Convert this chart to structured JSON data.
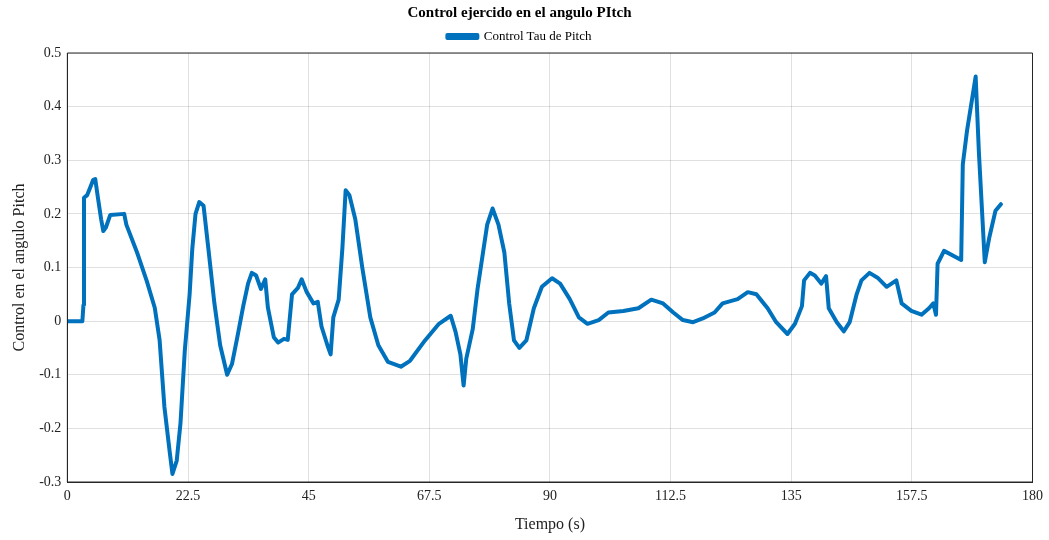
{
  "chart_data": {
    "type": "line",
    "title": "Control ejercido en el angulo PItch",
    "xlabel": "Tiempo (s)",
    "ylabel": "Control en el angulo Pitch",
    "xlim": [
      0,
      180
    ],
    "xticks": [
      0,
      22.5,
      45,
      67.5,
      90,
      112.5,
      135,
      157.5,
      180
    ],
    "ylim": [
      -0.3,
      0.5
    ],
    "yticks": [
      -0.3,
      -0.2,
      -0.1,
      0,
      0.1,
      0.2,
      0.3,
      0.4,
      0.5
    ],
    "grid": true,
    "legend": "top",
    "marker": "none",
    "line_style": "solid",
    "series": [
      {
        "name": "Control Tau de Pitch",
        "color": "#0072bd",
        "x": [
          0,
          2.8,
          3.0,
          3.1,
          3.7,
          4.3,
          4.8,
          5.2,
          5.7,
          6.3,
          6.7,
          7.2,
          8.0,
          10.6,
          11.0,
          13.0,
          14.8,
          16.3,
          17.2,
          18.1,
          19.1,
          19.6,
          20.4,
          21.1,
          21.9,
          22.8,
          23.3,
          23.9,
          24.6,
          25.4,
          26.3,
          27.4,
          28.5,
          29.8,
          30.7,
          31.7,
          32.8,
          33.7,
          34.4,
          35.2,
          36.1,
          36.9,
          37.4,
          38.5,
          39.3,
          40.4,
          41.1,
          41.9,
          43.0,
          43.7,
          44.6,
          45.9,
          46.7,
          47.4,
          48.5,
          49.1,
          49.6,
          50.6,
          51.3,
          51.9,
          52.6,
          53.7,
          55.0,
          56.5,
          58.0,
          59.8,
          62.2,
          63.9,
          66.7,
          69.3,
          71.5,
          72.4,
          73.3,
          73.9,
          74.4,
          75.6,
          76.5,
          77.4,
          78.3,
          79.3,
          80.4,
          81.5,
          82.4,
          83.3,
          84.3,
          85.6,
          87.0,
          88.5,
          90.4,
          91.9,
          93.7,
          95.4,
          97.0,
          99.1,
          100.9,
          103.7,
          106.5,
          108.9,
          111.1,
          113.0,
          114.8,
          116.7,
          118.5,
          120.7,
          122.2,
          125.0,
          126.9,
          128.5,
          130.6,
          132.2,
          134.3,
          135.7,
          137.0,
          137.4,
          138.5,
          139.4,
          140.6,
          141.5,
          142.0,
          143.5,
          144.8,
          145.9,
          147.2,
          148.1,
          149.6,
          151.1,
          152.8,
          154.6,
          155.6,
          157.4,
          159.3,
          160.7,
          161.5,
          162.0,
          162.3,
          163.5,
          166.7,
          167.0,
          167.8,
          169.4,
          170.0,
          171.1,
          171.9,
          173.1,
          174.1
        ],
        "values": [
          0,
          0,
          0.03,
          0.23,
          0.235,
          0.25,
          0.263,
          0.265,
          0.23,
          0.19,
          0.168,
          0.175,
          0.198,
          0.2,
          0.18,
          0.128,
          0.075,
          0.025,
          -0.035,
          -0.16,
          -0.245,
          -0.285,
          -0.26,
          -0.19,
          -0.055,
          0.05,
          0.135,
          0.2,
          0.222,
          0.215,
          0.135,
          0.035,
          -0.045,
          -0.1,
          -0.08,
          -0.03,
          0.028,
          0.07,
          0.09,
          0.085,
          0.06,
          0.078,
          0.025,
          -0.03,
          -0.04,
          -0.033,
          -0.035,
          0.05,
          0.062,
          0.078,
          0.055,
          0.033,
          0.036,
          -0.01,
          -0.045,
          -0.062,
          0.007,
          0.04,
          0.137,
          0.244,
          0.235,
          0.19,
          0.1,
          0.007,
          -0.045,
          -0.076,
          -0.085,
          -0.074,
          -0.036,
          -0.005,
          0.01,
          -0.02,
          -0.062,
          -0.12,
          -0.07,
          -0.015,
          0.06,
          0.12,
          0.18,
          0.21,
          0.18,
          0.128,
          0.033,
          -0.036,
          -0.05,
          -0.036,
          0.024,
          0.064,
          0.08,
          0.07,
          0.041,
          0.007,
          -0.005,
          0.002,
          0.016,
          0.019,
          0.024,
          0.04,
          0.033,
          0.016,
          0.002,
          -0.002,
          0.005,
          0.016,
          0.033,
          0.041,
          0.054,
          0.05,
          0.024,
          -0.002,
          -0.024,
          -0.005,
          0.028,
          0.076,
          0.09,
          0.085,
          0.07,
          0.084,
          0.024,
          -0.002,
          -0.019,
          -0.002,
          0.05,
          0.076,
          0.09,
          0.081,
          0.064,
          0.076,
          0.033,
          0.019,
          0.012,
          0.024,
          0.033,
          0.012,
          0.107,
          0.131,
          0.114,
          0.292,
          0.356,
          0.456,
          0.315,
          0.11,
          0.154,
          0.206,
          0.218
        ]
      }
    ]
  }
}
